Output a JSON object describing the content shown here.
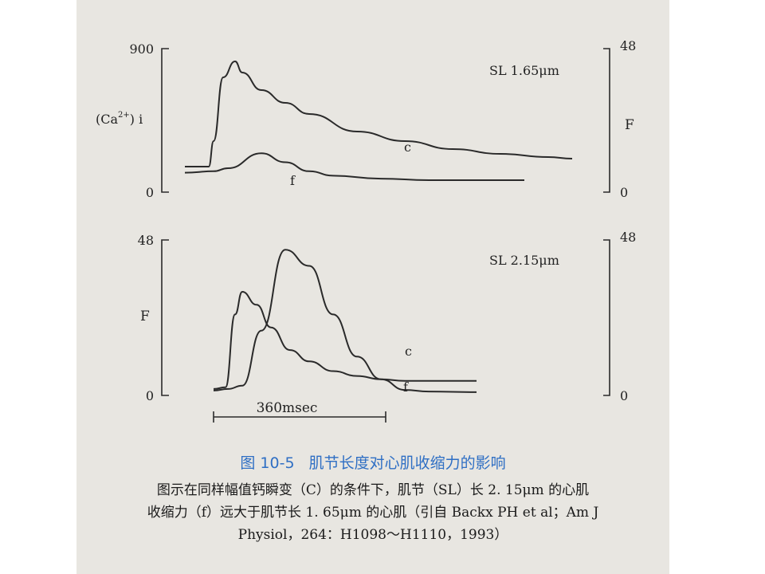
{
  "chart_data": [
    {
      "type": "line",
      "annotation": "SL 1.65μm",
      "left_axis": {
        "label": "(Ca2+) i",
        "ylim": [
          0,
          900
        ],
        "ticks": [
          "900",
          "0"
        ]
      },
      "right_axis": {
        "label": "F",
        "ylim": [
          0,
          48
        ],
        "ticks": [
          "48",
          "0"
        ]
      },
      "x_unit": "msec",
      "series": [
        {
          "name": "c",
          "axis": "left",
          "x": [
            -60,
            -10,
            0,
            20,
            45,
            60,
            100,
            150,
            200,
            300,
            400,
            500,
            600,
            700,
            750
          ],
          "y": [
            160,
            160,
            320,
            720,
            820,
            750,
            640,
            560,
            490,
            380,
            320,
            270,
            240,
            220,
            210
          ]
        },
        {
          "name": "f",
          "axis": "right",
          "x": [
            -60,
            0,
            30,
            100,
            150,
            200,
            250,
            350,
            450,
            550,
            650
          ],
          "y": [
            6.5,
            7,
            8,
            13,
            10,
            7,
            5.5,
            4.5,
            4,
            4,
            4
          ]
        }
      ]
    },
    {
      "type": "line",
      "annotation": "SL 2.15μm",
      "left_axis": {
        "label": "F",
        "ylim": [
          0,
          48
        ],
        "ticks": [
          "48",
          "0"
        ]
      },
      "right_axis": {
        "label": "",
        "ylim": [
          0,
          48
        ],
        "ticks": [
          "48",
          "0"
        ]
      },
      "x_unit": "msec",
      "series": [
        {
          "name": "c",
          "axis": "left",
          "x": [
            0,
            25,
            45,
            60,
            90,
            120,
            160,
            200,
            250,
            300,
            350,
            400,
            450,
            500,
            550
          ],
          "y": [
            2,
            2.5,
            25,
            32,
            28,
            21,
            14,
            10.5,
            7.5,
            6,
            5,
            4.5,
            4.5,
            4.5,
            4.5
          ]
        },
        {
          "name": "f",
          "axis": "left",
          "x": [
            0,
            30,
            60,
            100,
            150,
            200,
            250,
            300,
            350,
            400,
            450,
            500,
            550
          ],
          "y": [
            1.5,
            2,
            3,
            20,
            45,
            40,
            25,
            12,
            5,
            1.7,
            1.2,
            1.1,
            1
          ]
        }
      ],
      "scale_bar": {
        "label": "360msec",
        "duration": 360
      }
    }
  ],
  "caption": {
    "figure_number": "图 10-5",
    "title": "肌节长度对心肌收缩力的影响",
    "line1": "图示在同样幅值钙瞬变（C）的条件下，肌节（SL）长 2. 15μm 的心肌",
    "line2": "收缩力（f）远大于肌节长 1. 65μm 的心肌（引自 Backx PH et al；Am J",
    "line3": "Physiol，264：H1098～H1110，1993）"
  },
  "colors": {
    "curve": "#2a2a2a",
    "caption_title": "#2f6fc4",
    "background": "#e8e6e1"
  }
}
